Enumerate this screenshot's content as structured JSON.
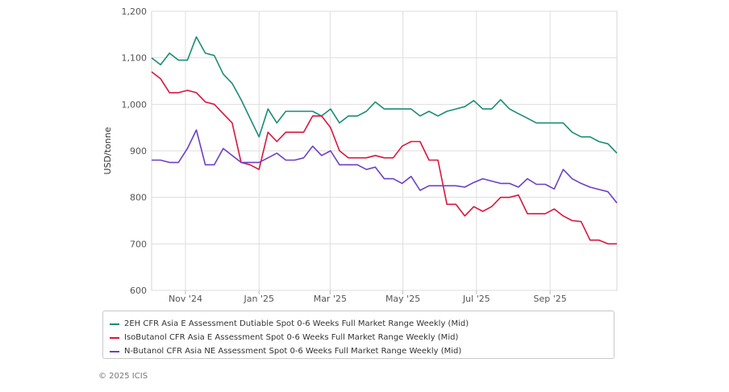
{
  "chart_data": {
    "type": "line",
    "ylabel": "USD/tonne",
    "xlabel": "",
    "ylim": [
      600,
      1200
    ],
    "yticks": [
      600,
      700,
      800,
      900,
      1000,
      1100,
      1200
    ],
    "ytick_labels": [
      "600",
      "700",
      "800",
      "900",
      "1,000",
      "1,100",
      "1,200"
    ],
    "xlim": [
      0,
      55
    ],
    "xticks": [
      {
        "pos": 4,
        "label": "Nov '24"
      },
      {
        "pos": 12.7,
        "label": "Jan '25"
      },
      {
        "pos": 21.1,
        "label": "Mar '25"
      },
      {
        "pos": 29.7,
        "label": "May '25"
      },
      {
        "pos": 38.4,
        "label": "Jul '25"
      },
      {
        "pos": 47.1,
        "label": "Sep '25"
      }
    ],
    "grid": true,
    "legend_position": "bottom",
    "series": [
      {
        "name": "2EH CFR Asia E Assessment Dutiable Spot 0-6 Weeks Full Market Range Weekly (Mid)",
        "color": "#1a8c74",
        "values": [
          1100,
          1085,
          1110,
          1095,
          1095,
          1145,
          1110,
          1105,
          1065,
          1045,
          1010,
          970,
          930,
          990,
          960,
          985,
          985,
          985,
          985,
          975,
          990,
          960,
          975,
          975,
          985,
          1005,
          990,
          990,
          990,
          990,
          975,
          985,
          975,
          985,
          990,
          995,
          1008,
          990,
          990,
          1010,
          990,
          980,
          970,
          960,
          960,
          960,
          960,
          940,
          930,
          930,
          920,
          915,
          895
        ]
      },
      {
        "name": "IsoButanol CFR Asia E Assessment Spot 0-6 Weeks Full Market Range Weekly (Mid)",
        "color": "#d9163e",
        "values": [
          1070,
          1055,
          1025,
          1025,
          1030,
          1025,
          1005,
          1000,
          980,
          960,
          875,
          870,
          860,
          940,
          920,
          940,
          940,
          940,
          975,
          975,
          950,
          900,
          885,
          885,
          885,
          890,
          885,
          885,
          910,
          920,
          920,
          880,
          880,
          785,
          785,
          760,
          780,
          770,
          780,
          800,
          800,
          805,
          765,
          765,
          765,
          775,
          760,
          750,
          748,
          708,
          708,
          700,
          700
        ]
      },
      {
        "name": "N-Butanol CFR Asia NE Assessment Spot 0-6 Weeks Full Market Range Weekly (Mid)",
        "color": "#6c3fc8",
        "values": [
          880,
          880,
          875,
          875,
          905,
          945,
          870,
          870,
          905,
          890,
          875,
          875,
          875,
          885,
          895,
          880,
          880,
          885,
          910,
          890,
          900,
          870,
          870,
          870,
          860,
          865,
          840,
          840,
          830,
          845,
          815,
          825,
          825,
          825,
          825,
          822,
          832,
          840,
          835,
          830,
          830,
          822,
          840,
          828,
          828,
          818,
          860,
          840,
          830,
          822,
          817,
          812,
          788
        ]
      }
    ]
  },
  "copyright": "© 2025 ICIS"
}
